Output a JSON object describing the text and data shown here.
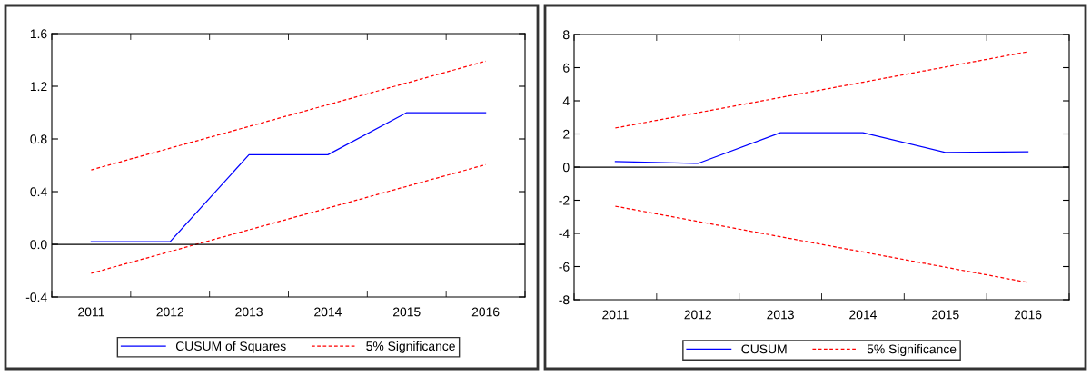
{
  "chart_data": [
    {
      "type": "line",
      "categories": [
        "2011",
        "2012",
        "2013",
        "2014",
        "2015",
        "2016"
      ],
      "ylim": [
        -0.4,
        1.6
      ],
      "yticks": [
        {
          "value": -0.4,
          "label": "-0.4"
        },
        {
          "value": 0,
          "label": "0.0"
        },
        0.4,
        0.8,
        1.2,
        1.6
      ],
      "legend": "bottom",
      "ref_lines": [
        {
          "axis": "y",
          "value": 0,
          "color": "#000000"
        }
      ],
      "series": [
        {
          "name": "CUSUM of Squares",
          "color": "#0000ff",
          "line_style": "solid",
          "values": [
            0.02,
            0.02,
            0.68,
            0.68,
            1.0,
            1.0
          ]
        },
        {
          "name": "5% Significance",
          "color": "#ff0000",
          "line_style": "dashed",
          "values": [
            0.565,
            0.73,
            0.895,
            1.06,
            1.225,
            1.39
          ]
        },
        {
          "color": "#ff0000",
          "line_style": "dashed",
          "values": [
            -0.22,
            -0.055,
            0.11,
            0.275,
            0.44,
            0.605
          ]
        }
      ]
    },
    {
      "type": "line",
      "categories": [
        "2011",
        "2012",
        "2013",
        "2014",
        "2015",
        "2016"
      ],
      "ylim": [
        -8,
        8
      ],
      "yticks": [
        -8,
        -6,
        -4,
        -2,
        0,
        2,
        4,
        6,
        8
      ],
      "legend": "bottom",
      "ref_lines": [
        {
          "axis": "y",
          "value": 0,
          "color": "#000000"
        }
      ],
      "series": [
        {
          "name": "CUSUM",
          "color": "#0000ff",
          "line_style": "solid",
          "values": [
            0.33,
            0.22,
            2.08,
            2.08,
            0.88,
            0.93
          ]
        },
        {
          "name": "5% Significance",
          "color": "#ff0000",
          "line_style": "dashed",
          "values": [
            2.36,
            3.28,
            4.2,
            5.12,
            6.04,
            6.96
          ]
        },
        {
          "color": "#ff0000",
          "line_style": "dashed",
          "values": [
            -2.36,
            -3.28,
            -4.2,
            -5.12,
            -6.04,
            -6.96
          ]
        }
      ]
    }
  ]
}
